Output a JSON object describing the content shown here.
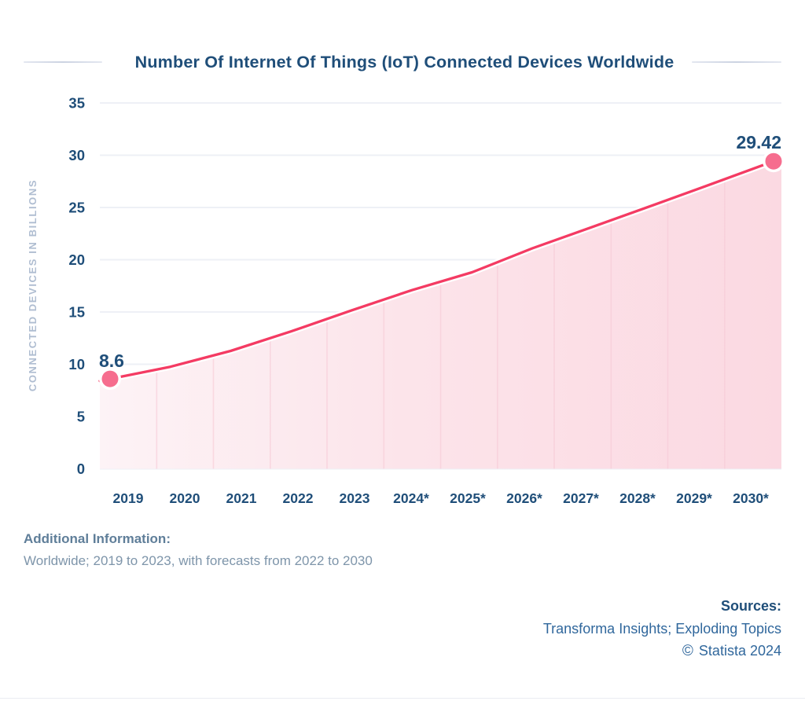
{
  "chart_data": {
    "type": "area",
    "title": "Number Of Internet Of Things (IoT) Connected Devices Worldwide",
    "x": [
      "2019",
      "2020",
      "2021",
      "2022",
      "2023",
      "2024*",
      "2025*",
      "2026*",
      "2027*",
      "2028*",
      "2029*",
      "2030*"
    ],
    "series": [
      {
        "name": "IoT connected devices",
        "values": [
          8.6,
          9.76,
          11.28,
          13.14,
          15.14,
          17.08,
          18.8,
          21.09,
          23.14,
          25.21,
          27.31,
          29.42
        ]
      }
    ],
    "point_labels": {
      "first": "8.6",
      "last": "29.42"
    },
    "xlabel": "",
    "ylabel": "CONNECTED DEVICES IN BILLIONS",
    "yticks": [
      0,
      5,
      10,
      15,
      20,
      25,
      30,
      35
    ],
    "ylim": [
      0,
      35
    ],
    "grid": "horizontal",
    "legend": "none"
  },
  "footer": {
    "additional_info_label": "Additional Information:",
    "additional_info_text": "Worldwide; 2019 to 2023, with forecasts from 2022 to 2030",
    "sources_label": "Sources:",
    "sources_text": "Transforma Insights; Exploding Topics",
    "copyright_symbol": "©",
    "copyright_text": "Statista 2024"
  },
  "colors": {
    "title_navy": "#1f4e79",
    "tick_navy": "#1f4e79",
    "line": "#f43b63",
    "marker": "#f66d8e",
    "area_gradient_start": "#fdf3f6",
    "area_gradient_mid": "#fce4ea",
    "area_gradient_end": "#fbd9e2",
    "h_grid": "#eef0f6",
    "v_grid": "#f6c9d6",
    "axis_title": "#afbdd1",
    "muted_label": "#5f7e99",
    "muted_text": "#7e95aa",
    "source_blue": "#30679c"
  }
}
